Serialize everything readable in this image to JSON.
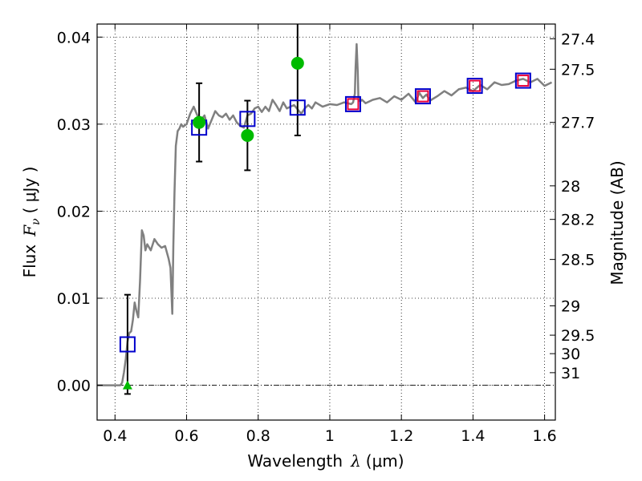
{
  "chart_data": {
    "type": "scatter",
    "xlabel": {
      "prefix": "Wavelength",
      "symbol": "λ",
      "unit": "(μm)"
    },
    "ylabel": {
      "prefix": "Flux",
      "symbol": "F",
      "subscript": "ν",
      "unit": "( μJy )"
    },
    "y2label": "Magnitude (AB)",
    "xlim": [
      0.35,
      1.63
    ],
    "ylim": [
      -0.004,
      0.0415
    ],
    "grid": true,
    "x_ticks": [
      {
        "value": 0.4,
        "label": "0.4"
      },
      {
        "value": 0.6,
        "label": "0.6"
      },
      {
        "value": 0.8,
        "label": "0.8"
      },
      {
        "value": 1.0,
        "label": "1"
      },
      {
        "value": 1.2,
        "label": "1.2"
      },
      {
        "value": 1.4,
        "label": "1.4"
      },
      {
        "value": 1.6,
        "label": "1.6"
      }
    ],
    "y_ticks": [
      {
        "value": 0.0,
        "label": "0.00"
      },
      {
        "value": 0.01,
        "label": "0.01"
      },
      {
        "value": 0.02,
        "label": "0.02"
      },
      {
        "value": 0.03,
        "label": "0.03"
      },
      {
        "value": 0.04,
        "label": "0.04"
      }
    ],
    "y2_ticks": [
      {
        "value": 27.4,
        "label": "27.4"
      },
      {
        "value": 27.5,
        "label": "27.5"
      },
      {
        "value": 27.7,
        "label": "27.7"
      },
      {
        "value": 28,
        "label": "28"
      },
      {
        "value": 28.2,
        "label": "28.2"
      },
      {
        "value": 28.5,
        "label": "28.5"
      },
      {
        "value": 29,
        "label": "29"
      },
      {
        "value": 29.5,
        "label": "29.5"
      },
      {
        "value": 30,
        "label": "30"
      },
      {
        "value": 31,
        "label": "31"
      }
    ],
    "zero_line": 0.0,
    "series": [
      {
        "kind": "line",
        "color": "#808080",
        "x": [
          0.35,
          0.415,
          0.42,
          0.425,
          0.43,
          0.435,
          0.44,
          0.445,
          0.45,
          0.455,
          0.46,
          0.465,
          0.47,
          0.475,
          0.48,
          0.485,
          0.49,
          0.5,
          0.51,
          0.52,
          0.53,
          0.54,
          0.55,
          0.555,
          0.56,
          0.563,
          0.566,
          0.57,
          0.575,
          0.58,
          0.585,
          0.59,
          0.6,
          0.61,
          0.62,
          0.63,
          0.64,
          0.65,
          0.66,
          0.67,
          0.68,
          0.69,
          0.7,
          0.71,
          0.72,
          0.73,
          0.74,
          0.75,
          0.76,
          0.77,
          0.78,
          0.79,
          0.8,
          0.81,
          0.82,
          0.83,
          0.84,
          0.85,
          0.86,
          0.87,
          0.88,
          0.9,
          0.92,
          0.93,
          0.94,
          0.95,
          0.96,
          0.98,
          1.0,
          1.02,
          1.04,
          1.06,
          1.065,
          1.07,
          1.072,
          1.075,
          1.078,
          1.08,
          1.085,
          1.09,
          1.1,
          1.12,
          1.14,
          1.16,
          1.18,
          1.2,
          1.22,
          1.24,
          1.25,
          1.26,
          1.27,
          1.28,
          1.3,
          1.32,
          1.34,
          1.36,
          1.38,
          1.4,
          1.42,
          1.44,
          1.46,
          1.48,
          1.5,
          1.52,
          1.54,
          1.56,
          1.58,
          1.6,
          1.62
        ],
        "y": [
          0.0,
          0.0,
          0.0003,
          0.0015,
          0.003,
          0.005,
          0.006,
          0.0062,
          0.0075,
          0.0095,
          0.0085,
          0.0078,
          0.012,
          0.0178,
          0.0172,
          0.0155,
          0.0162,
          0.0155,
          0.0168,
          0.0162,
          0.0158,
          0.016,
          0.0145,
          0.0135,
          0.0082,
          0.016,
          0.022,
          0.0275,
          0.0292,
          0.0295,
          0.03,
          0.0297,
          0.03,
          0.0312,
          0.032,
          0.031,
          0.0305,
          0.031,
          0.0295,
          0.0305,
          0.0315,
          0.031,
          0.0308,
          0.0312,
          0.0305,
          0.031,
          0.0302,
          0.0298,
          0.0296,
          0.031,
          0.0312,
          0.0318,
          0.032,
          0.0314,
          0.032,
          0.0315,
          0.0328,
          0.0322,
          0.0315,
          0.0325,
          0.0318,
          0.0322,
          0.0312,
          0.0318,
          0.0322,
          0.0318,
          0.0325,
          0.032,
          0.0323,
          0.0322,
          0.0325,
          0.0323,
          0.0325,
          0.0335,
          0.0365,
          0.0392,
          0.036,
          0.033,
          0.0326,
          0.0328,
          0.0324,
          0.0328,
          0.033,
          0.0325,
          0.0332,
          0.0328,
          0.0335,
          0.0325,
          0.0336,
          0.033,
          0.0334,
          0.0327,
          0.0332,
          0.0338,
          0.0333,
          0.034,
          0.0342,
          0.0338,
          0.0345,
          0.034,
          0.0348,
          0.0345,
          0.0346,
          0.035,
          0.0352,
          0.0348,
          0.0352,
          0.0344,
          0.0348
        ]
      },
      {
        "kind": "square",
        "color": "#0000cc",
        "x": [
          0.435,
          0.635,
          0.77,
          0.91,
          1.065,
          1.26,
          1.405,
          1.54
        ],
        "y": [
          0.0047,
          0.0296,
          0.0306,
          0.0319,
          0.0323,
          0.0332,
          0.0344,
          0.035
        ]
      },
      {
        "kind": "square",
        "color": "#e8003a",
        "x": [
          1.065,
          1.26,
          1.405,
          1.54
        ],
        "y": [
          0.0323,
          0.0332,
          0.0344,
          0.035
        ]
      },
      {
        "kind": "circle",
        "color": "#00bb00",
        "x": [
          0.635,
          0.77,
          0.91
        ],
        "y": [
          0.0302,
          0.0287,
          0.037
        ],
        "yerr": [
          0.0045,
          0.004,
          0.0083
        ]
      },
      {
        "kind": "triangle",
        "color": "#00bb00",
        "x": [
          0.435
        ],
        "y": [
          0.0
        ]
      },
      {
        "kind": "errorbar",
        "color": "#000000",
        "x": [
          0.435
        ],
        "y": [
          0.0047
        ],
        "yerr": [
          0.0057
        ]
      }
    ]
  }
}
